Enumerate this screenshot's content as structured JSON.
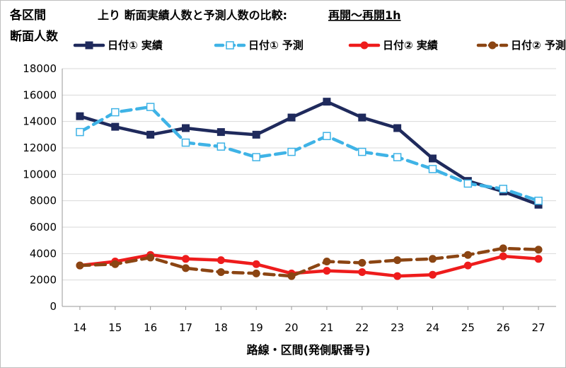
{
  "chart_data": {
    "type": "line",
    "ylabel_line1": "各区間",
    "ylabel_line2": "断面人数",
    "title": "上り 断面実績人数と予測人数の比較:",
    "title_underlined": "再開～再開1h",
    "xlabel": "路線・区間(発側駅番号)",
    "x": [
      "14",
      "15",
      "16",
      "17",
      "18",
      "19",
      "20",
      "21",
      "22",
      "23",
      "24",
      "25",
      "26",
      "27"
    ],
    "ylim": [
      0,
      18000
    ],
    "yticks": [
      "0",
      "2000",
      "4000",
      "6000",
      "8000",
      "10000",
      "12000",
      "14000",
      "16000",
      "18000"
    ],
    "grid": true,
    "legend_position": "top",
    "series": [
      {
        "name": "日付① 実績",
        "color": "#1f2a5c",
        "style": "solid",
        "marker": "square-filled",
        "values": [
          14400,
          13600,
          13000,
          13500,
          13200,
          13000,
          14300,
          15500,
          14300,
          13500,
          11200,
          9500,
          8700,
          7700
        ]
      },
      {
        "name": "日付① 予測",
        "color": "#3fb3e6",
        "style": "dashed",
        "marker": "square-open",
        "values": [
          13200,
          14700,
          15100,
          12400,
          12100,
          11300,
          11700,
          12900,
          11700,
          11300,
          10400,
          9300,
          8900,
          8000
        ]
      },
      {
        "name": "日付② 実績",
        "color": "#ee1c1c",
        "style": "solid",
        "marker": "circle-filled",
        "values": [
          3100,
          3400,
          3900,
          3600,
          3500,
          3200,
          2500,
          2700,
          2600,
          2300,
          2400,
          3100,
          3800,
          3600
        ]
      },
      {
        "name": "日付② 予測",
        "color": "#8b4513",
        "style": "dashed",
        "marker": "circle-filled",
        "values": [
          3100,
          3200,
          3700,
          2900,
          2600,
          2500,
          2300,
          3400,
          3300,
          3500,
          3600,
          3900,
          4400,
          4300
        ]
      }
    ]
  }
}
